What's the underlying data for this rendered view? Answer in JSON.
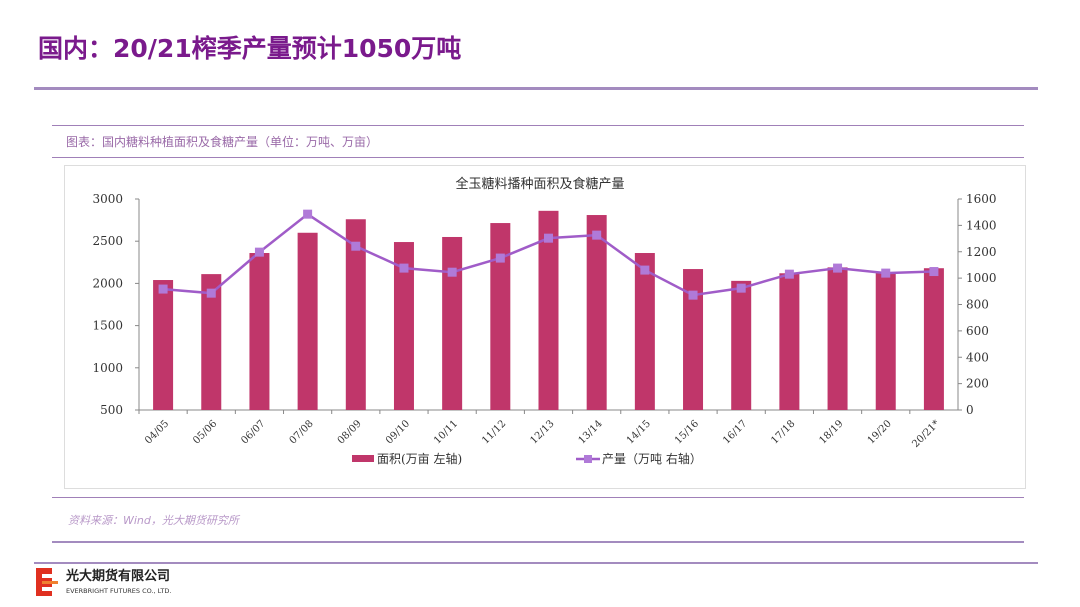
{
  "header": {
    "title": "国内：20/21榨季产量预计1050万吨"
  },
  "figure_caption": "图表：国内糖料种植面积及食糖产量（单位：万吨、万亩）",
  "source": "资料来源：Wind，光大期货研究所",
  "company": {
    "name_cn": "光大期货有限公司",
    "name_en": "EVERBRIGHT FUTURES CO., LTD."
  },
  "chart_data": {
    "type": "bar+line",
    "title": "全玉糖料播种面积及食糖产量",
    "categories": [
      "04/05",
      "05/06",
      "06/07",
      "07/08",
      "08/09",
      "09/10",
      "10/11",
      "11/12",
      "12/13",
      "13/14",
      "14/15",
      "15/16",
      "16/17",
      "17/18",
      "18/19",
      "19/20",
      "20/21*"
    ],
    "series": [
      {
        "name": "面积(万亩 左轴)",
        "type": "bar",
        "axis": "left",
        "color": "#c0366a",
        "values": [
          2040,
          2110,
          2360,
          2600,
          2760,
          2490,
          2550,
          2715,
          2860,
          2810,
          2360,
          2170,
          2030,
          2120,
          2190,
          2130,
          2180
        ]
      },
      {
        "name": "产量（万吨 右轴）",
        "type": "line",
        "axis": "right",
        "color": "#a05cc8",
        "values": [
          917,
          886,
          1197,
          1485,
          1242,
          1076,
          1045,
          1152,
          1303,
          1326,
          1061,
          871,
          924,
          1030,
          1076,
          1038,
          1050
        ]
      }
    ],
    "y_left": {
      "range": [
        500,
        3000
      ],
      "ticks": [
        500,
        1000,
        1500,
        2000,
        2500,
        3000
      ]
    },
    "y_right": {
      "range": [
        0,
        1600
      ],
      "ticks": [
        0,
        200,
        400,
        600,
        800,
        1000,
        1200,
        1400,
        1600
      ]
    },
    "legend": "bottom",
    "grid": false
  }
}
